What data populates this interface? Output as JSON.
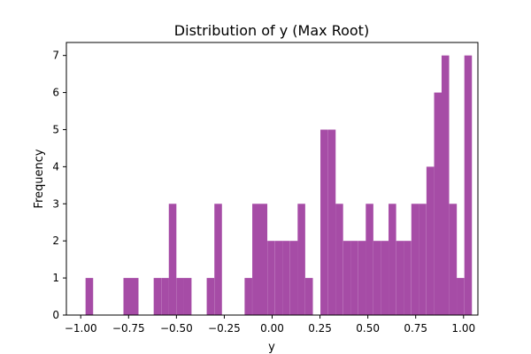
{
  "chart_data": {
    "type": "bar",
    "title": "Distribution of y (Max Root)",
    "xlabel": "y",
    "ylabel": "Frequency",
    "bar_color": "#a64ca6",
    "bin_width": 0.03958,
    "xlim": [
      -1.075,
      1.075
    ],
    "ylim": [
      0,
      7.35
    ],
    "xticks": [
      -1.0,
      -0.75,
      -0.5,
      -0.25,
      0.0,
      0.25,
      0.5,
      0.75,
      1.0
    ],
    "xtick_labels": [
      "−1.00",
      "−0.75",
      "−0.50",
      "−0.25",
      "0.00",
      "0.25",
      "0.50",
      "0.75",
      "1.00"
    ],
    "yticks": [
      0,
      1,
      2,
      3,
      4,
      5,
      6,
      7
    ],
    "ytick_labels": [
      "0",
      "1",
      "2",
      "3",
      "4",
      "5",
      "6",
      "7"
    ],
    "bins": [
      {
        "x": -0.955,
        "count": 1
      },
      {
        "x": -0.757,
        "count": 1
      },
      {
        "x": -0.718,
        "count": 1
      },
      {
        "x": -0.599,
        "count": 1
      },
      {
        "x": -0.559,
        "count": 1
      },
      {
        "x": -0.52,
        "count": 3
      },
      {
        "x": -0.48,
        "count": 1
      },
      {
        "x": -0.441,
        "count": 1
      },
      {
        "x": -0.322,
        "count": 1
      },
      {
        "x": -0.282,
        "count": 3
      },
      {
        "x": -0.124,
        "count": 1
      },
      {
        "x": -0.084,
        "count": 3
      },
      {
        "x": -0.045,
        "count": 3
      },
      {
        "x": -0.005,
        "count": 2
      },
      {
        "x": 0.035,
        "count": 2
      },
      {
        "x": 0.074,
        "count": 2
      },
      {
        "x": 0.114,
        "count": 2
      },
      {
        "x": 0.153,
        "count": 3
      },
      {
        "x": 0.193,
        "count": 1
      },
      {
        "x": 0.272,
        "count": 5
      },
      {
        "x": 0.312,
        "count": 5
      },
      {
        "x": 0.351,
        "count": 3
      },
      {
        "x": 0.391,
        "count": 2
      },
      {
        "x": 0.43,
        "count": 2
      },
      {
        "x": 0.47,
        "count": 2
      },
      {
        "x": 0.509,
        "count": 3
      },
      {
        "x": 0.549,
        "count": 2
      },
      {
        "x": 0.589,
        "count": 2
      },
      {
        "x": 0.628,
        "count": 3
      },
      {
        "x": 0.668,
        "count": 2
      },
      {
        "x": 0.707,
        "count": 2
      },
      {
        "x": 0.747,
        "count": 3
      },
      {
        "x": 0.786,
        "count": 3
      },
      {
        "x": 0.826,
        "count": 4
      },
      {
        "x": 0.866,
        "count": 6
      },
      {
        "x": 0.905,
        "count": 7
      },
      {
        "x": 0.945,
        "count": 3
      },
      {
        "x": 0.984,
        "count": 1
      },
      {
        "x": 1.024,
        "count": 7
      }
    ]
  }
}
